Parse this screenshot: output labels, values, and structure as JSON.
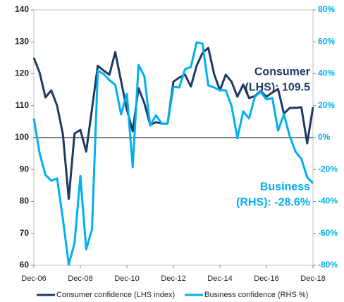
{
  "chart_data": {
    "type": "line",
    "categories": [
      "Dec-06",
      null,
      null,
      null,
      null,
      null,
      null,
      null,
      "Dec-08",
      null,
      null,
      null,
      null,
      null,
      null,
      null,
      "Dec-10",
      null,
      null,
      null,
      null,
      null,
      null,
      null,
      "Dec-12",
      null,
      null,
      null,
      null,
      null,
      null,
      null,
      "Dec-14",
      null,
      null,
      null,
      null,
      null,
      null,
      null,
      "Dec-16",
      null,
      null,
      null,
      null,
      null,
      null,
      null,
      "Dec-18"
    ],
    "series": [
      {
        "name": "Consumer confidence (LHS index)",
        "color": "#203864",
        "axis": "y",
        "values": [
          125,
          120.3,
          112.6,
          114.8,
          110,
          101,
          80.8,
          101.3,
          102.4,
          95.6,
          109,
          122.5,
          121,
          119.7,
          126.8,
          117.7,
          108.8,
          102,
          115.5,
          110.8,
          104,
          104.8,
          104.4,
          104.4,
          117.5,
          118.8,
          119.7,
          116,
          122.5,
          126.5,
          128.1,
          119.9,
          114.8,
          119.7,
          117.5,
          112.8,
          116.6,
          112.4,
          113,
          114.6,
          112.8,
          114.1,
          115.2,
          107.5,
          109.3,
          109.3,
          109.5,
          98.2,
          109.5
        ]
      },
      {
        "name": "Business confidence (RHS %)",
        "color": "#00b0f0",
        "axis": "y2",
        "values": [
          12,
          -10,
          -23.4,
          -27,
          -25.6,
          -51,
          -79.6,
          -66,
          -24,
          -70,
          -57.5,
          42,
          39.8,
          36,
          33,
          14.6,
          27.4,
          -18.6,
          45.5,
          38.5,
          7.5,
          14,
          8.8,
          8.8,
          31.8,
          31.4,
          42.9,
          44.2,
          59.7,
          58.8,
          32.7,
          31.4,
          29.6,
          29.6,
          19.9,
          -0.4,
          16.4,
          12,
          25.6,
          28.7,
          23.9,
          24.8,
          4.4,
          14.6,
          0.9,
          -8.8,
          -13.3,
          -24.8,
          -28.6
        ]
      }
    ],
    "ylim": [
      60,
      140
    ],
    "yticks": [
      60,
      70,
      80,
      90,
      100,
      110,
      120,
      130,
      140
    ],
    "y2lim": [
      -80,
      80
    ],
    "y2ticks": [
      {
        "value": -80,
        "label": "-80%"
      },
      {
        "value": -60,
        "label": "-60%"
      },
      {
        "value": -40,
        "label": "-40%"
      },
      {
        "value": -20,
        "label": "-20%"
      },
      {
        "value": 0,
        "label": "0%"
      },
      {
        "value": 20,
        "label": "20%"
      },
      {
        "value": 40,
        "label": "40%"
      },
      {
        "value": 60,
        "label": "60%"
      },
      {
        "value": 80,
        "label": "80%"
      }
    ],
    "hline": 100,
    "annotations": [
      {
        "lines": [
          "Consumer",
          "(LHS): 109.5"
        ],
        "color": "#203864",
        "y": 120.5
      },
      {
        "lines": [
          "Business",
          "(RHS): -28.6%"
        ],
        "color": "#00b0f0",
        "y": 84.5
      }
    ],
    "legend": "bottom"
  }
}
